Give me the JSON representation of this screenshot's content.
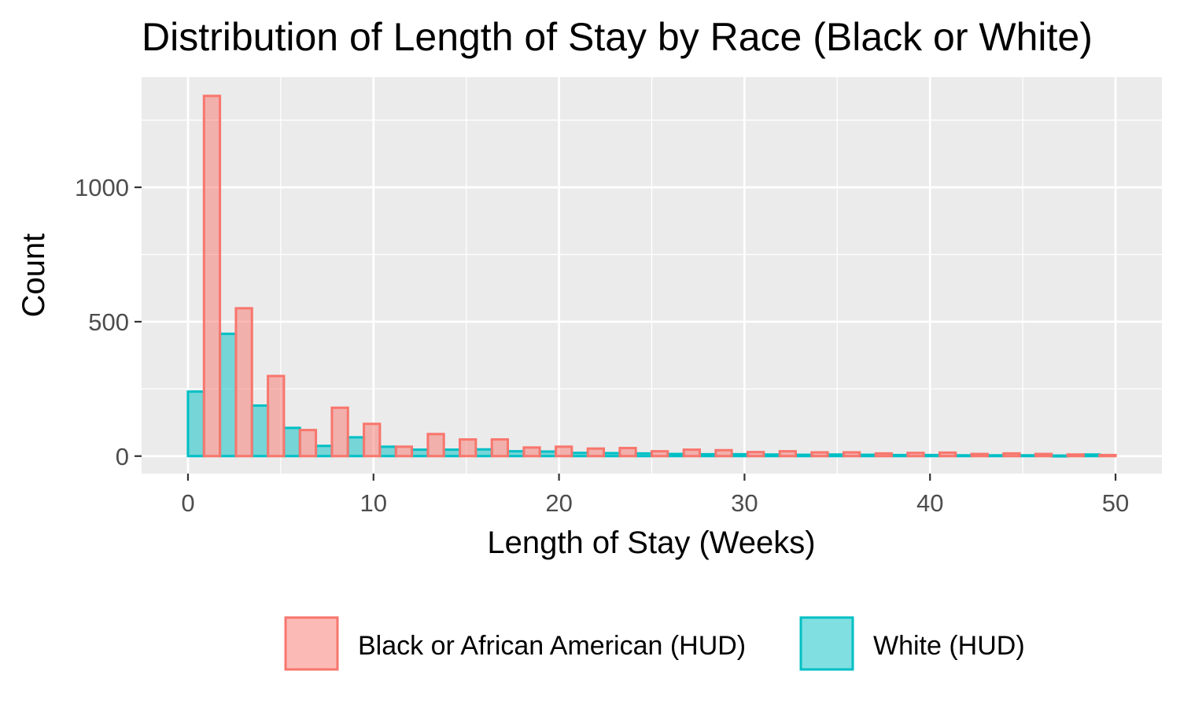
{
  "chart_data": {
    "type": "bar",
    "title": "Distribution of Length of Stay by Race (Black or White)",
    "xlabel": "Length of Stay (Weeks)",
    "ylabel": "Count",
    "xlim": [
      -2.5,
      52.5
    ],
    "ylim": [
      -65,
      1410
    ],
    "x_ticks": [
      0,
      10,
      20,
      30,
      40,
      50
    ],
    "y_ticks": [
      0,
      500,
      1000
    ],
    "grid": true,
    "legend_position": "bottom",
    "bin_width": 1.724,
    "bin_centers": [
      0.862,
      2.586,
      4.31,
      6.034,
      7.759,
      9.483,
      11.207,
      12.931,
      14.655,
      16.379,
      18.103,
      19.828,
      21.552,
      23.276,
      25.0,
      26.724,
      28.448,
      30.172,
      31.897,
      33.621,
      35.345,
      37.069,
      38.793,
      40.517,
      42.241,
      43.966,
      45.69,
      47.414,
      49.138
    ],
    "series": [
      {
        "name": "Black or African American (HUD)",
        "color": "#F8766D",
        "fill": "#F8766D",
        "values": [
          1340,
          550,
          298,
          97,
          180,
          120,
          35,
          82,
          62,
          62,
          32,
          35,
          28,
          30,
          18,
          24,
          22,
          15,
          18,
          14,
          14,
          10,
          12,
          13,
          8,
          10,
          8,
          6,
          4
        ]
      },
      {
        "name": "White (HUD)",
        "color": "#00BFC4",
        "fill": "#00BFC4",
        "values": [
          240,
          455,
          188,
          105,
          38,
          70,
          35,
          24,
          24,
          25,
          18,
          17,
          12,
          11,
          10,
          8,
          7,
          7,
          6,
          5,
          6,
          5,
          4,
          4,
          3,
          3,
          3,
          2,
          6
        ]
      }
    ]
  }
}
